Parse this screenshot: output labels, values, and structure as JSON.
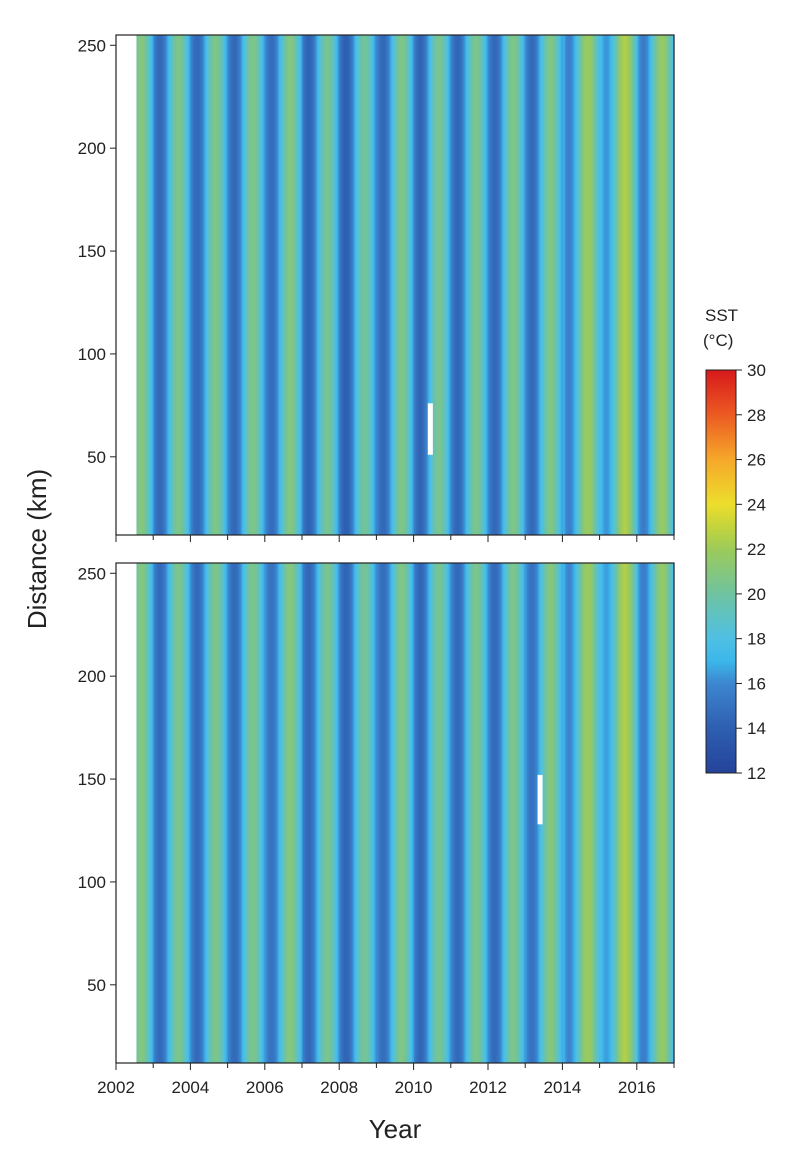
{
  "chart_data": {
    "type": "heatmap",
    "title": "",
    "xlabel": "Year",
    "ylabel": "Distance (km)",
    "x_range": [
      2002,
      2017
    ],
    "y_range": [
      12,
      255
    ],
    "x_ticks": [
      2002,
      2004,
      2006,
      2008,
      2010,
      2012,
      2014,
      2016
    ],
    "y_ticks": [
      50,
      100,
      150,
      200,
      250
    ],
    "colorbar": {
      "title_line1": "SST",
      "title_line2": "(°C)",
      "min": 12,
      "max": 30,
      "ticks": [
        12,
        14,
        16,
        18,
        20,
        22,
        24,
        26,
        28,
        30
      ],
      "stops": [
        {
          "value": 12,
          "color": "#24439a"
        },
        {
          "value": 14,
          "color": "#2e5fb0"
        },
        {
          "value": 16,
          "color": "#3d86d0"
        },
        {
          "value": 17,
          "color": "#3bb7ea"
        },
        {
          "value": 18,
          "color": "#4fc0e4"
        },
        {
          "value": 20,
          "color": "#6fc3a0"
        },
        {
          "value": 22,
          "color": "#9dcb5a"
        },
        {
          "value": 23,
          "color": "#c4d43c"
        },
        {
          "value": 24,
          "color": "#ecde2c"
        },
        {
          "value": 26,
          "color": "#f6a82a"
        },
        {
          "value": 28,
          "color": "#ec5a22"
        },
        {
          "value": 30,
          "color": "#d7191c"
        }
      ]
    },
    "panels": [
      {
        "name": "top",
        "data_start_year": 2002.55,
        "seasonal_cycle": {
          "mean": 17.6,
          "amplitude": 3.1,
          "peak_phase_year_fraction": 0.67
        },
        "annual_anomaly": [
          {
            "year": 2002,
            "anomaly": 0.3
          },
          {
            "year": 2003,
            "anomaly": 0.0
          },
          {
            "year": 2004,
            "anomaly": 0.0
          },
          {
            "year": 2005,
            "anomaly": 0.0
          },
          {
            "year": 2006,
            "anomaly": 0.2
          },
          {
            "year": 2007,
            "anomaly": -0.3
          },
          {
            "year": 2008,
            "anomaly": -0.5
          },
          {
            "year": 2009,
            "anomaly": 0.0
          },
          {
            "year": 2010,
            "anomaly": -0.2
          },
          {
            "year": 2011,
            "anomaly": -0.1
          },
          {
            "year": 2012,
            "anomaly": 0.0
          },
          {
            "year": 2013,
            "anomaly": 0.1
          },
          {
            "year": 2014,
            "anomaly": 1.2
          },
          {
            "year": 2015,
            "anomaly": 1.8
          },
          {
            "year": 2016,
            "anomaly": 1.0
          }
        ],
        "gap_marker": {
          "year": 2010.45,
          "distance_from": 51,
          "distance_to": 76
        }
      },
      {
        "name": "bottom",
        "data_start_year": 2002.55,
        "seasonal_cycle": {
          "mean": 17.6,
          "amplitude": 3.0,
          "peak_phase_year_fraction": 0.67
        },
        "annual_anomaly": [
          {
            "year": 2002,
            "anomaly": 0.3
          },
          {
            "year": 2003,
            "anomaly": 0.0
          },
          {
            "year": 2004,
            "anomaly": 0.0
          },
          {
            "year": 2005,
            "anomaly": 0.0
          },
          {
            "year": 2006,
            "anomaly": 0.4
          },
          {
            "year": 2007,
            "anomaly": -0.1
          },
          {
            "year": 2008,
            "anomaly": -0.3
          },
          {
            "year": 2009,
            "anomaly": 0.2
          },
          {
            "year": 2010,
            "anomaly": -0.2
          },
          {
            "year": 2011,
            "anomaly": 0.0
          },
          {
            "year": 2012,
            "anomaly": 0.0
          },
          {
            "year": 2013,
            "anomaly": 0.4
          },
          {
            "year": 2014,
            "anomaly": 1.3
          },
          {
            "year": 2015,
            "anomaly": 1.9
          },
          {
            "year": 2016,
            "anomaly": 1.0
          }
        ],
        "gap_marker": {
          "year": 2013.4,
          "distance_from": 128,
          "distance_to": 152
        }
      }
    ]
  }
}
